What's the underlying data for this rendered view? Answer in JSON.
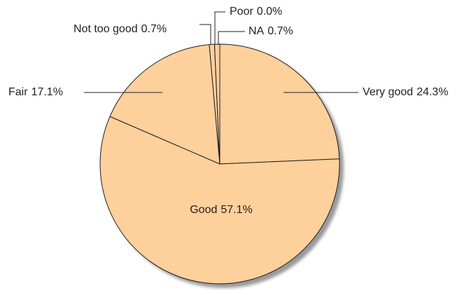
{
  "chart_data": {
    "type": "pie",
    "categories": [
      "Very good",
      "Good",
      "Fair",
      "Not too good",
      "Poor",
      "NA"
    ],
    "values": [
      24.3,
      57.1,
      17.1,
      0.7,
      0.0,
      0.7
    ],
    "value_labels": [
      "24.3%",
      "57.1%",
      "17.1%",
      "0.7%",
      "0.0%",
      "0.7%"
    ],
    "color": "#fdd09c"
  }
}
